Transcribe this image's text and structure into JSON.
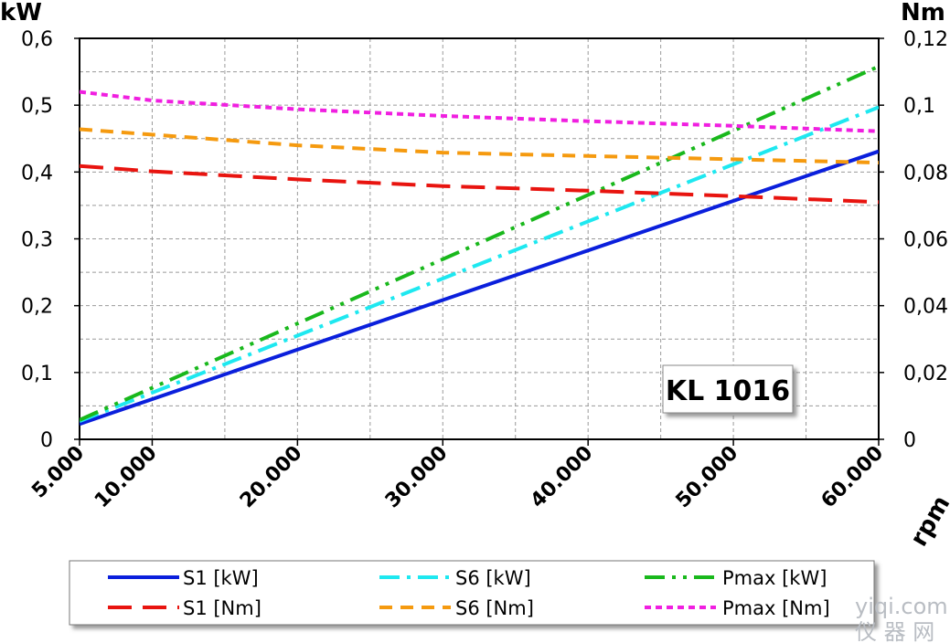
{
  "chart_data": {
    "type": "line",
    "label_box": "KL 1016",
    "x_unit": "rpm",
    "y_left_unit": "kW",
    "y_right_unit": "Nm",
    "x_range": [
      5000,
      60000
    ],
    "y_left_range": [
      0,
      0.6
    ],
    "y_right_range": [
      0,
      0.12
    ],
    "grid": true,
    "x_ticks": [
      {
        "value": 5000,
        "label": "5.000"
      },
      {
        "value": 10000,
        "label": "10.000"
      },
      {
        "value": 20000,
        "label": "20.000"
      },
      {
        "value": 30000,
        "label": "30.000"
      },
      {
        "value": 40000,
        "label": "40.000"
      },
      {
        "value": 50000,
        "label": "50.000"
      },
      {
        "value": 60000,
        "label": "60.000"
      }
    ],
    "x_grid_minor": [
      15000,
      25000,
      35000,
      45000,
      55000
    ],
    "y_left_ticks": [
      {
        "value": 0,
        "label": "0"
      },
      {
        "value": 0.1,
        "label": "0,1"
      },
      {
        "value": 0.2,
        "label": "0,2"
      },
      {
        "value": 0.3,
        "label": "0,3"
      },
      {
        "value": 0.4,
        "label": "0,4"
      },
      {
        "value": 0.5,
        "label": "0,5"
      },
      {
        "value": 0.6,
        "label": "0,6"
      }
    ],
    "y_right_ticks": [
      {
        "value": 0,
        "label": "0"
      },
      {
        "value": 0.02,
        "label": "0,02"
      },
      {
        "value": 0.04,
        "label": "0,04"
      },
      {
        "value": 0.06,
        "label": "0,06"
      },
      {
        "value": 0.08,
        "label": "0,08"
      },
      {
        "value": 0.1,
        "label": "0,1"
      },
      {
        "value": 0.12,
        "label": "0,12"
      }
    ],
    "y_grid_minor_left": [
      0.05,
      0.15,
      0.25,
      0.35,
      0.45,
      0.55
    ],
    "series": [
      {
        "name": "S1 [kW]",
        "axis": "left",
        "color": "#0a1fdc",
        "dash": "solid",
        "x": [
          5000,
          60000
        ],
        "y": [
          0.023,
          0.431
        ]
      },
      {
        "name": "S6 [kW]",
        "axis": "left",
        "color": "#1ee8f0",
        "dash": "dashdot",
        "x": [
          5000,
          60000
        ],
        "y": [
          0.027,
          0.497
        ]
      },
      {
        "name": "Pmax [kW]",
        "axis": "left",
        "color": "#19b81c",
        "dash": "dashdotdot",
        "x": [
          5000,
          60000
        ],
        "y": [
          0.029,
          0.558
        ]
      },
      {
        "name": "S1 [Nm]",
        "axis": "right",
        "color": "#e8140f",
        "dash": "longdash",
        "x": [
          5000,
          10000,
          20000,
          30000,
          40000,
          50000,
          60000
        ],
        "y": [
          0.0818,
          0.0802,
          0.0778,
          0.0758,
          0.0744,
          0.0728,
          0.071
        ]
      },
      {
        "name": "S6 [Nm]",
        "axis": "right",
        "color": "#f59a0f",
        "dash": "dash",
        "x": [
          5000,
          10000,
          20000,
          30000,
          40000,
          50000,
          60000
        ],
        "y": [
          0.0928,
          0.0912,
          0.088,
          0.0858,
          0.0848,
          0.0838,
          0.0828
        ]
      },
      {
        "name": "Pmax [Nm]",
        "axis": "right",
        "color": "#f01fe0",
        "dash": "shortdash",
        "x": [
          5000,
          10000,
          20000,
          30000,
          40000,
          50000,
          60000
        ],
        "y": [
          0.104,
          0.1014,
          0.0988,
          0.0968,
          0.0952,
          0.0938,
          0.0922
        ]
      }
    ]
  },
  "watermark": {
    "line1": "yiqi.com",
    "line2": "仪 器 网"
  }
}
